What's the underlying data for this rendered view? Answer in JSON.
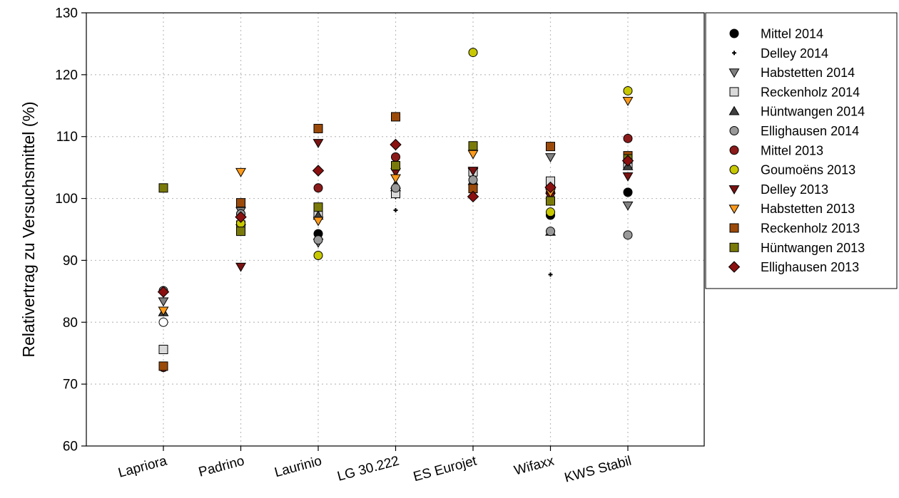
{
  "chart_data": {
    "type": "scatter",
    "title": "",
    "xlabel": "",
    "ylabel": "Relativertrag zu Versuchsmittel (%)",
    "ylim": [
      60,
      130
    ],
    "yticks": [
      60,
      70,
      80,
      90,
      100,
      110,
      120,
      130
    ],
    "categories": [
      "Lapriora",
      "Padrino",
      "Laurinio",
      "LG 30.222",
      "ES Eurojet",
      "Wifaxx",
      "KWS Stabil"
    ],
    "grid": true,
    "legend_position": "right-outside",
    "series": [
      {
        "name": "Mittel 2014",
        "marker": "circle",
        "color": "#000000",
        "values": [
          null,
          97.5,
          94.3,
          null,
          108,
          97.3,
          101
        ]
      },
      {
        "name": "Delley 2014",
        "marker": "plus",
        "color": "#000000",
        "values": [
          null,
          null,
          null,
          98.1,
          null,
          87.7,
          null
        ]
      },
      {
        "name": "Habstetten 2014",
        "marker": "triangle-down",
        "color": "#808080",
        "values": [
          83.4,
          98,
          92.9,
          100.7,
          104.3,
          106.7,
          98.9
        ]
      },
      {
        "name": "Reckenholz 2014",
        "marker": "square",
        "color": "#d9d9d9",
        "values": [
          75.6,
          95.7,
          97.5,
          100.8,
          104.3,
          102.8,
          105.6
        ]
      },
      {
        "name": "Hüntwangen 2014",
        "marker": "triangle-up",
        "color": "#404040",
        "values": [
          81.6,
          96.3,
          97.2,
          102.2,
          102.8,
          94.6,
          105.2
        ]
      },
      {
        "name": "Ellighausen 2014",
        "marker": "circle",
        "color": "#999999",
        "values": [
          85.1,
          97.5,
          93.3,
          101.7,
          103,
          94.7,
          94.1
        ]
      },
      {
        "name": "Mittel 2013",
        "marker": "circle",
        "color": "#8b1a1a",
        "values": [
          72.7,
          null,
          101.7,
          106.7,
          null,
          101,
          109.7
        ]
      },
      {
        "name": "Goumoëns 2013",
        "marker": "circle",
        "color": "#c8c800",
        "values": [
          null,
          96,
          90.8,
          null,
          123.6,
          97.8,
          117.4
        ]
      },
      {
        "name": "Delley 2013",
        "marker": "triangle-down",
        "color": "#7b1212",
        "values": [
          null,
          89,
          109,
          104.3,
          104.5,
          100.3,
          103.6
        ]
      },
      {
        "name": "Habstetten 2013",
        "marker": "triangle-down",
        "color": "#ff9a1a",
        "values": [
          81.9,
          104.3,
          96.4,
          103.3,
          107.2,
          101,
          115.8
        ]
      },
      {
        "name": "Reckenholz 2013",
        "marker": "square",
        "color": "#9b4a0a",
        "values": [
          72.9,
          99.3,
          111.3,
          113.2,
          101.6,
          108.4,
          106.9
        ]
      },
      {
        "name": "Hüntwangen 2013",
        "marker": "square",
        "color": "#7a7a0a",
        "values": [
          101.7,
          94.7,
          98.6,
          105.3,
          108.5,
          99.6,
          106.4
        ]
      },
      {
        "name": "Ellighausen 2013",
        "marker": "diamond",
        "color": "#8b1010",
        "values": [
          84.9,
          97,
          104.5,
          108.7,
          100.3,
          101.8,
          106.1
        ]
      }
    ],
    "extra_points": [
      {
        "category": "Lapriora",
        "value": 80,
        "marker": "circle",
        "color": "#ffffff"
      }
    ]
  }
}
